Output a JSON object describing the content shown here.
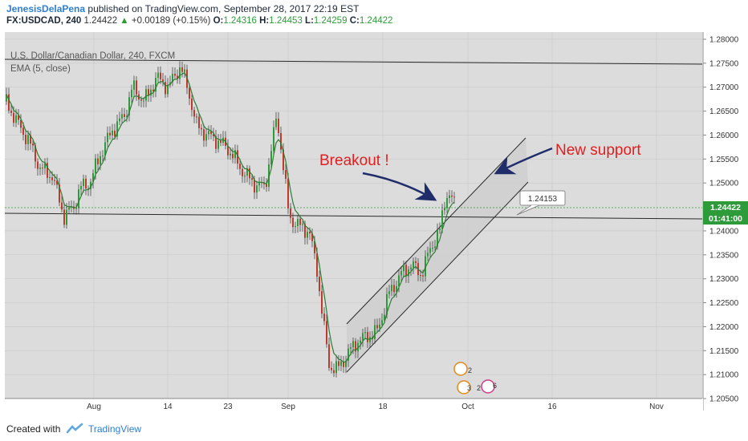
{
  "header": {
    "author": "JenesisDelaPena",
    "published_text": "published on TradingView.com, September 28, 2017 22:19 EST",
    "symbol": "FX:USDCAD, 240",
    "last": "1.24422",
    "change_arrow": "▲",
    "change": "+0.00189 (+0.15%)",
    "o_label": "O:",
    "o_value": "1.24316",
    "h_label": "H:",
    "h_value": "1.24453",
    "l_label": "L:",
    "l_value": "1.24259",
    "c_label": "C:",
    "c_value": "1.24422"
  },
  "legend": {
    "instrument": "U.S. Dollar/Canadian Dollar, 240, FXCM",
    "indicator": "EMA (5, close)"
  },
  "footer": {
    "created_with": "Created with",
    "brand": "TradingView"
  },
  "colors": {
    "up": "#2e9b3a",
    "down": "#c0392b",
    "ema": "#2e7d32",
    "annotation": "#e02020",
    "arrow": "#1f2d6b",
    "price_tag": "#2e9b3a"
  },
  "chart_data": {
    "type": "candlestick",
    "y_axis_ticks": [
      "1.28000",
      "1.27500",
      "1.27000",
      "1.26500",
      "1.26000",
      "1.25500",
      "1.25000",
      "1.24000",
      "1.23500",
      "1.23000",
      "1.22500",
      "1.22000",
      "1.21500",
      "1.21000",
      "1.20500"
    ],
    "ylim": [
      1.2025,
      1.2815
    ],
    "x_axis_ticks": [
      "Aug",
      "14",
      "23",
      "Sep",
      "18",
      "Oct",
      "16",
      "Nov"
    ],
    "current_price_label": "1.24422",
    "countdown_label": "01:41:00",
    "price_label_box": "1.24153",
    "annotations": [
      {
        "text": "Breakout !",
        "role": "breakout-label"
      },
      {
        "text": "New support",
        "role": "support-label"
      }
    ],
    "event_markers": [
      "2",
      "3",
      "2",
      "6"
    ],
    "series": [
      {
        "name": "EMA (5, close)",
        "type": "line"
      }
    ],
    "grid": true
  }
}
